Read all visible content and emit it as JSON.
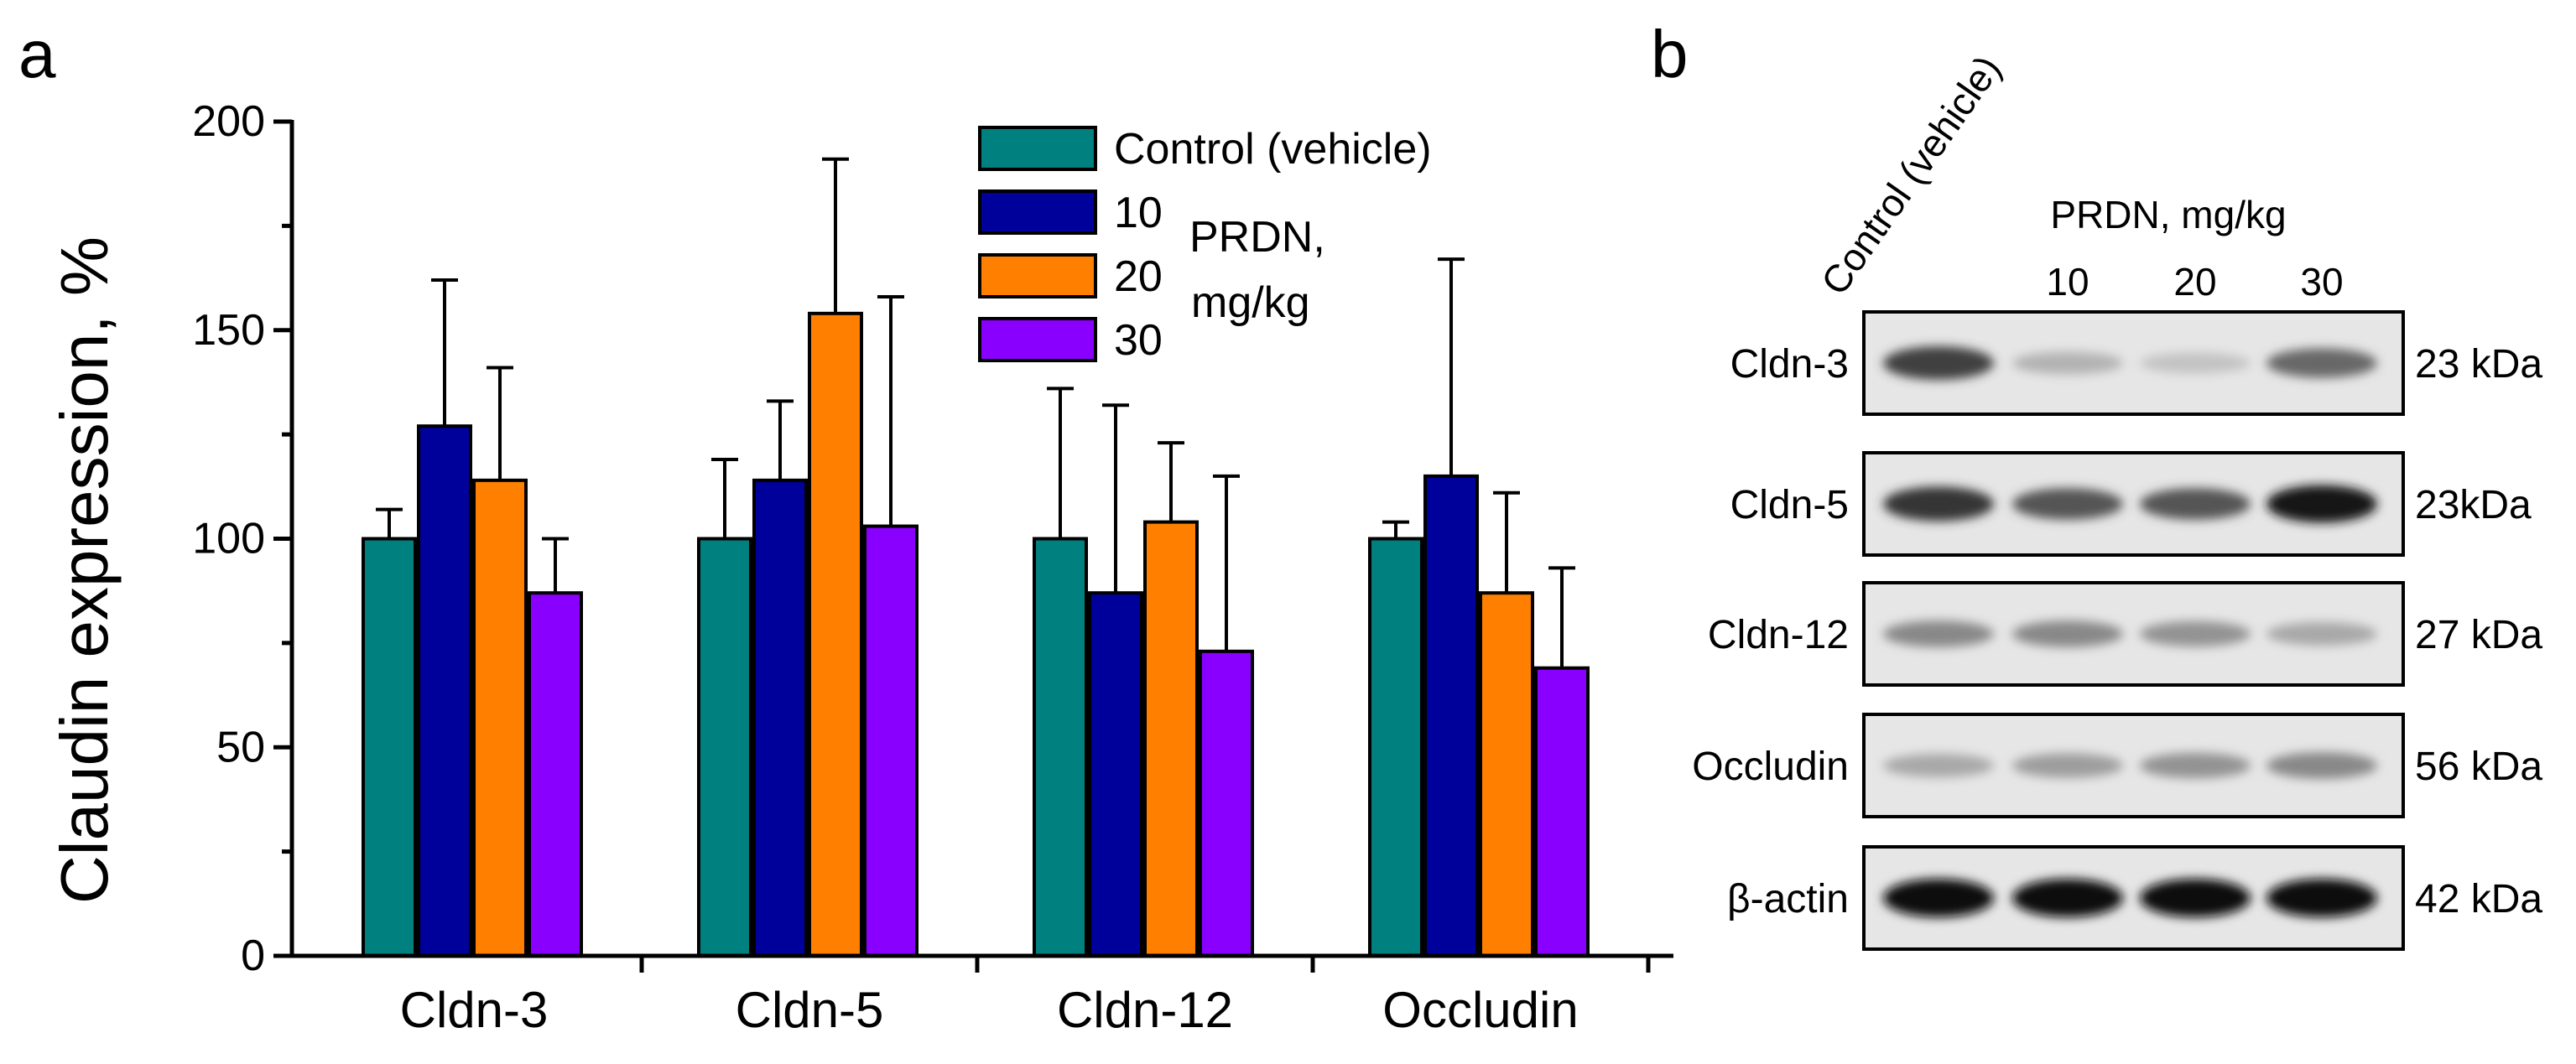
{
  "panels": {
    "a": {
      "label": "a"
    },
    "b": {
      "label": "b"
    }
  },
  "colors": {
    "control": "#00807f",
    "dose10": "#00009a",
    "dose20": "#ff8000",
    "dose30": "#8a00ff",
    "axis": "#000000"
  },
  "chart_data": {
    "type": "bar",
    "ylabel": "Claudin expression, %",
    "xlabel": "",
    "ylim": [
      0,
      200
    ],
    "yticks": [
      0,
      50,
      100,
      150,
      200
    ],
    "categories": [
      "Cldn-3",
      "Cldn-5",
      "Cldn-12",
      "Occludin"
    ],
    "series": [
      {
        "name": "Control (vehicle)",
        "color": "#00807f",
        "values": [
          100,
          100,
          100,
          100
        ],
        "errors": [
          7,
          19,
          36,
          4
        ]
      },
      {
        "name": "10",
        "color": "#00009a",
        "values": [
          127,
          114,
          87,
          115
        ],
        "errors": [
          35,
          19,
          45,
          52
        ]
      },
      {
        "name": "20",
        "color": "#ff8000",
        "values": [
          114,
          154,
          104,
          87
        ],
        "errors": [
          27,
          37,
          19,
          24
        ]
      },
      {
        "name": "30",
        "color": "#8a00ff",
        "values": [
          87,
          103,
          73,
          69
        ],
        "errors": [
          13,
          55,
          42,
          24
        ]
      }
    ],
    "legend": {
      "placement": "top-right",
      "group_label": "PRDN, mg/kg"
    },
    "grid": false
  },
  "blot": {
    "column_headers": {
      "control": "Control (vehicle)",
      "dose_group": "PRDN, mg/kg",
      "doses": [
        "10",
        "20",
        "30"
      ]
    },
    "rows": [
      {
        "protein": "Cldn-3",
        "size": "23 kDa",
        "intensities": [
          0.75,
          0.2,
          0.12,
          0.55
        ]
      },
      {
        "protein": "Cldn-5",
        "size": "23kDa",
        "intensities": [
          0.8,
          0.65,
          0.65,
          0.95
        ]
      },
      {
        "protein": "Cldn-12",
        "size": "27 kDa",
        "intensities": [
          0.4,
          0.4,
          0.35,
          0.25
        ]
      },
      {
        "protein": "Occludin",
        "size": "56 kDa",
        "intensities": [
          0.25,
          0.3,
          0.35,
          0.4
        ]
      },
      {
        "protein": "β-actin",
        "size": "42 kDa",
        "intensities": [
          1.0,
          1.0,
          1.0,
          1.0
        ]
      }
    ]
  }
}
